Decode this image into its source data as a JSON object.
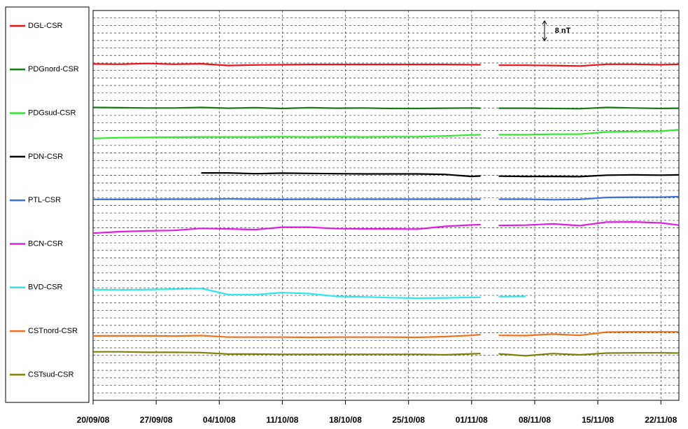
{
  "chart_data": {
    "type": "line",
    "x": [
      "20/09/08",
      "23/09/08",
      "26/09/08",
      "29/09/08",
      "02/10/08",
      "05/10/08",
      "08/10/08",
      "11/10/08",
      "14/10/08",
      "17/10/08",
      "20/10/08",
      "23/10/08",
      "26/10/08",
      "29/10/08",
      "01/11/08",
      "02/11/08",
      "03/11/08",
      "04/11/08",
      "07/11/08",
      "10/11/08",
      "13/11/08",
      "16/11/08",
      "19/11/08",
      "22/11/08",
      "24/11/08"
    ],
    "xlim": [
      "20/09/08",
      "24/11/08"
    ],
    "xticks": [
      "20/09/08",
      "27/09/08",
      "04/10/08",
      "11/10/08",
      "18/10/08",
      "25/10/08",
      "01/11/08",
      "08/11/08",
      "15/11/08",
      "22/11/08"
    ],
    "ylim": [
      0,
      156
    ],
    "yticks": [
      0,
      3,
      6,
      9,
      12,
      15,
      18,
      21,
      24,
      27,
      30,
      33,
      36,
      39,
      42,
      45,
      48,
      51,
      54,
      57,
      60,
      63,
      66,
      69,
      72,
      75,
      78,
      81,
      84,
      87,
      90,
      93,
      96,
      99,
      102,
      105,
      108,
      111,
      114,
      117,
      120,
      123,
      126,
      129,
      132,
      135,
      138,
      141,
      144,
      147,
      150,
      153,
      156
    ],
    "grid": true,
    "legend": "left",
    "scale_bar": {
      "value": 8,
      "label": "8 nT"
    },
    "series": [
      {
        "name": "DGL-CSR",
        "color": "#e8141b",
        "values": [
          134.6,
          134.5,
          134.8,
          134.5,
          134.7,
          134.0,
          134.2,
          134.3,
          134.4,
          134.4,
          134.4,
          134.4,
          134.4,
          134.4,
          134.3,
          134.3,
          null,
          134.1,
          134.1,
          134.0,
          133.8,
          134.5,
          134.5,
          134.3,
          134.5
        ]
      },
      {
        "name": "PDGnord-CSR",
        "color": "#1a7a1a",
        "values": [
          117.2,
          117.1,
          117.0,
          117.0,
          117.2,
          116.9,
          117.1,
          116.8,
          117.1,
          116.9,
          117.0,
          116.8,
          116.8,
          116.9,
          117.0,
          116.9,
          null,
          116.9,
          116.9,
          116.8,
          116.7,
          117.2,
          117.0,
          116.8,
          116.9
        ]
      },
      {
        "name": "PDGsud-CSR",
        "color": "#33e833",
        "values": [
          104.8,
          105.1,
          105.2,
          105.3,
          105.4,
          105.4,
          105.4,
          105.5,
          105.4,
          105.5,
          105.4,
          105.5,
          105.5,
          105.8,
          106.2,
          106.3,
          null,
          106.3,
          106.3,
          106.5,
          106.5,
          107.4,
          107.6,
          107.7,
          108.3
        ]
      },
      {
        "name": "PDN-CSR",
        "color": "#000000",
        "values": [
          null,
          null,
          null,
          null,
          91.0,
          91.0,
          90.7,
          90.9,
          90.8,
          90.7,
          90.6,
          90.6,
          90.6,
          90.4,
          89.6,
          89.8,
          null,
          89.7,
          89.6,
          89.6,
          89.5,
          90.1,
          90.2,
          90.1,
          90.2
        ]
      },
      {
        "name": "PTL-CSR",
        "color": "#3f6fd8",
        "values": [
          80.4,
          80.4,
          80.4,
          80.5,
          80.5,
          80.6,
          80.5,
          80.4,
          80.5,
          80.4,
          80.5,
          80.5,
          80.5,
          80.5,
          80.5,
          80.5,
          null,
          80.5,
          80.5,
          80.3,
          80.4,
          81.2,
          81.3,
          81.3,
          81.5
        ]
      },
      {
        "name": "BCN-CSR",
        "color": "#e020e0",
        "values": [
          66.9,
          67.5,
          67.8,
          68.0,
          68.8,
          68.6,
          68.3,
          69.3,
          69.3,
          68.7,
          68.6,
          68.6,
          68.5,
          69.6,
          70.2,
          70.3,
          null,
          70.0,
          70.1,
          70.6,
          69.9,
          71.3,
          71.4,
          71.0,
          70.1
        ]
      },
      {
        "name": "BVD-CSR",
        "color": "#30e8e8",
        "values": [
          44.3,
          44.2,
          44.3,
          44.5,
          44.8,
          42.3,
          42.3,
          43.1,
          42.7,
          41.6,
          41.4,
          41.1,
          40.9,
          41.0,
          41.2,
          41.2,
          null,
          41.5,
          41.6,
          null,
          null,
          null,
          null,
          null,
          null
        ]
      },
      {
        "name": "CSTnord-CSR",
        "color": "#f07020",
        "values": [
          25.8,
          25.8,
          25.8,
          25.7,
          25.9,
          25.3,
          25.3,
          25.3,
          25.2,
          25.3,
          25.3,
          25.3,
          25.2,
          25.5,
          26.0,
          26.3,
          null,
          26.0,
          25.9,
          26.5,
          26.0,
          27.3,
          27.4,
          27.4,
          27.4
        ]
      },
      {
        "name": "CSTsud-CSR",
        "color": "#808010",
        "values": [
          19.4,
          19.4,
          19.2,
          19.2,
          19.1,
          18.5,
          18.5,
          18.4,
          18.4,
          18.4,
          18.4,
          18.4,
          18.4,
          18.2,
          18.6,
          18.7,
          null,
          18.6,
          17.8,
          18.7,
          18.2,
          18.9,
          19.0,
          19.0,
          18.9
        ]
      }
    ]
  }
}
